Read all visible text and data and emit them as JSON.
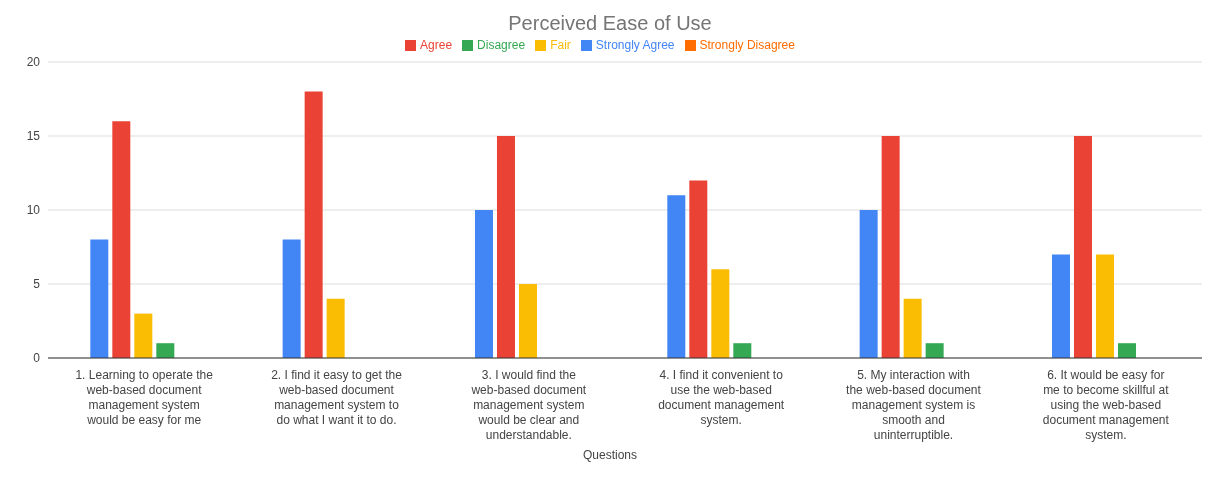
{
  "chart_data": {
    "type": "bar",
    "title": "Perceived Ease of Use",
    "xlabel": "Questions",
    "categories": [
      "1. Learning to operate the web-based document management system would be easy for me",
      "2. I find it easy to get the web-based document management system to do what I want it to do.",
      "3. I would find the web-based document management system would be clear and understandable.",
      "4. I find it convenient to use the web-based document management system.",
      "5. My interaction with the web-based document management system is smooth and uninterruptible.",
      "6. It would be easy for me to become skillful at using the web-based document management system."
    ],
    "series": [
      {
        "name": "Strongly Agree",
        "color": "#4285f4",
        "values": [
          8,
          8,
          10,
          11,
          10,
          7
        ]
      },
      {
        "name": "Agree",
        "color": "#ea4335",
        "values": [
          16,
          18,
          15,
          12,
          15,
          15
        ]
      },
      {
        "name": "Fair",
        "color": "#fbbc04",
        "values": [
          3,
          4,
          5,
          6,
          4,
          7
        ]
      },
      {
        "name": "Disagree",
        "color": "#34a853",
        "values": [
          1,
          0,
          0,
          1,
          1,
          1
        ]
      },
      {
        "name": "Strongly Disagree",
        "color": "#ff6d01",
        "values": [
          0,
          0,
          0,
          0,
          0,
          0
        ]
      }
    ],
    "ylim": [
      0,
      20
    ],
    "yticks": [
      0,
      5,
      10,
      15,
      20
    ],
    "grid": "y",
    "legend": "top"
  }
}
